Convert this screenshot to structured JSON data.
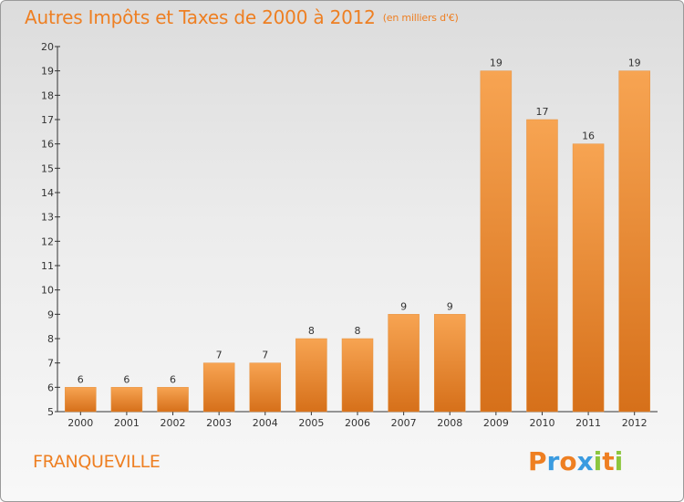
{
  "chart_data": {
    "type": "bar",
    "title": "Autres Impôts et Taxes de 2000 à 2012",
    "subtitle": "(en milliers d'€)",
    "categories": [
      "2000",
      "2001",
      "2002",
      "2003",
      "2004",
      "2005",
      "2006",
      "2007",
      "2008",
      "2009",
      "2010",
      "2011",
      "2012"
    ],
    "values": [
      6,
      6,
      6,
      7,
      7,
      8,
      8,
      9,
      9,
      19,
      17,
      16,
      19
    ],
    "ylim": [
      5,
      20
    ],
    "yticks": [
      5,
      6,
      7,
      8,
      9,
      10,
      11,
      12,
      13,
      14,
      15,
      16,
      17,
      18,
      19,
      20
    ],
    "grid": false,
    "bar_color": "#ee7f22"
  },
  "footer": {
    "city": "FRANQUEVILLE",
    "brand": "Proxiti"
  },
  "colors": {
    "accent": "#ee7f22",
    "logo_letters": [
      "#ee7f22",
      "#3a9be0",
      "#ee7f22",
      "#3a9be0",
      "#8cc63e",
      "#ee7f22",
      "#8cc63e"
    ]
  }
}
